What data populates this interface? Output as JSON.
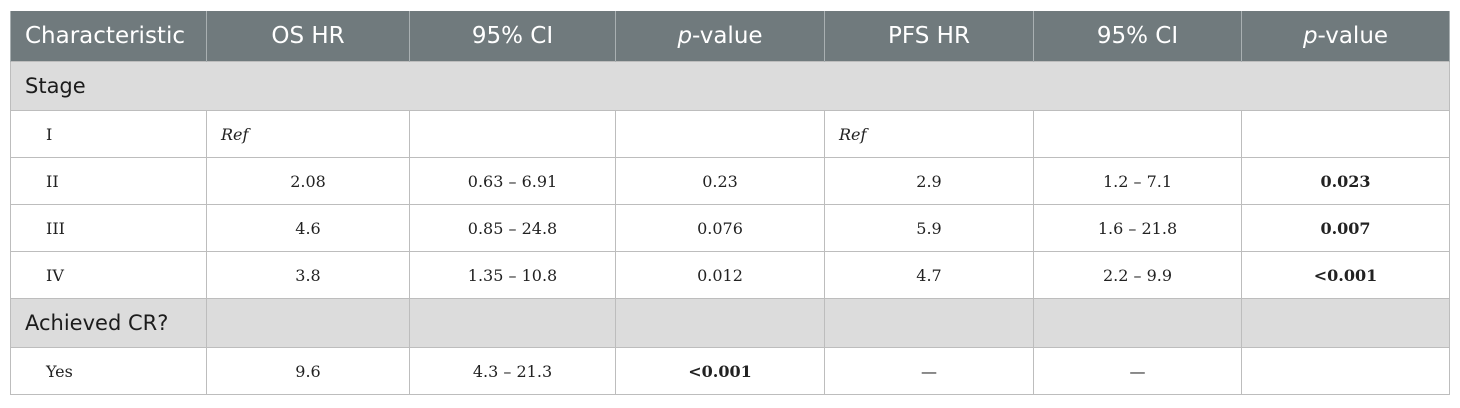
{
  "header": {
    "characteristic": "Characteristic",
    "os_hr": "OS HR",
    "ci_1": "95% CI",
    "p_italic": "p",
    "p_rest": "-value",
    "pfs_hr": "PFS HR",
    "ci_2": "95% CI"
  },
  "sections": {
    "stage": "Stage",
    "achieved_cr": "Achieved CR?"
  },
  "rows": [
    {
      "label": "I",
      "os_hr": "Ref",
      "os_ci": "",
      "os_p": "",
      "pfs_hr": "Ref",
      "pfs_ci": "",
      "pfs_p": ""
    },
    {
      "label": "II",
      "os_hr": "2.08",
      "os_ci": "0.63 – 6.91",
      "os_p": "0.23",
      "pfs_hr": "2.9",
      "pfs_ci": "1.2 – 7.1",
      "pfs_p": "0.023"
    },
    {
      "label": "III",
      "os_hr": "4.6",
      "os_ci": "0.85 – 24.8",
      "os_p": "0.076",
      "pfs_hr": "5.9",
      "pfs_ci": "1.6 – 21.8",
      "pfs_p": "0.007"
    },
    {
      "label": "IV",
      "os_hr": "3.8",
      "os_ci": "1.35 – 10.8",
      "os_p": "0.012",
      "pfs_hr": "4.7",
      "pfs_ci": "2.2 – 9.9",
      "pfs_p": "<0.001"
    },
    {
      "label": "Yes",
      "os_hr": "9.6",
      "os_ci": "4.3 – 21.3",
      "os_p": "<0.001",
      "pfs_hr": "—",
      "pfs_ci": "—",
      "pfs_p": ""
    }
  ]
}
